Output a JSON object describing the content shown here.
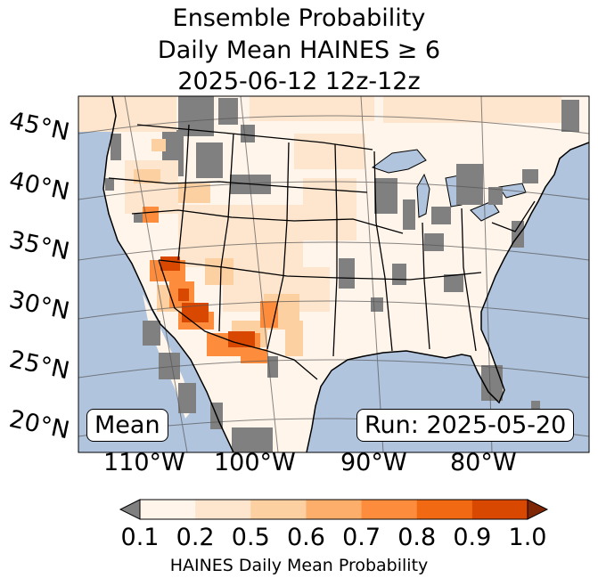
{
  "title": {
    "line1": "Ensemble Probability",
    "line2": "Daily Mean HAINES ≥ 6",
    "line3": "2025-06-12 12z-12z"
  },
  "map": {
    "lat_labels": [
      "45°N",
      "40°N",
      "35°N",
      "30°N",
      "25°N",
      "20°N"
    ],
    "lon_labels": [
      "110°W",
      "100°W",
      "90°W",
      "80°W"
    ],
    "stat_label": "Mean",
    "run_label": "Run: 2025-05-20",
    "colors": {
      "ocean": "#b0c4de",
      "land_missing": "#808080",
      "border": "#000000"
    }
  },
  "colorbar": {
    "label": "HAINES Daily Mean Probability",
    "ticks": [
      "0.1",
      "0.2",
      "0.5",
      "0.6",
      "0.7",
      "0.8",
      "0.9",
      "1.0"
    ],
    "under_color": "#808080",
    "over_color": "#7f2704",
    "colors": [
      "#fff5eb",
      "#fee6ce",
      "#fdd0a2",
      "#fdae6b",
      "#fd8d3c",
      "#f16913",
      "#d94801"
    ]
  }
}
